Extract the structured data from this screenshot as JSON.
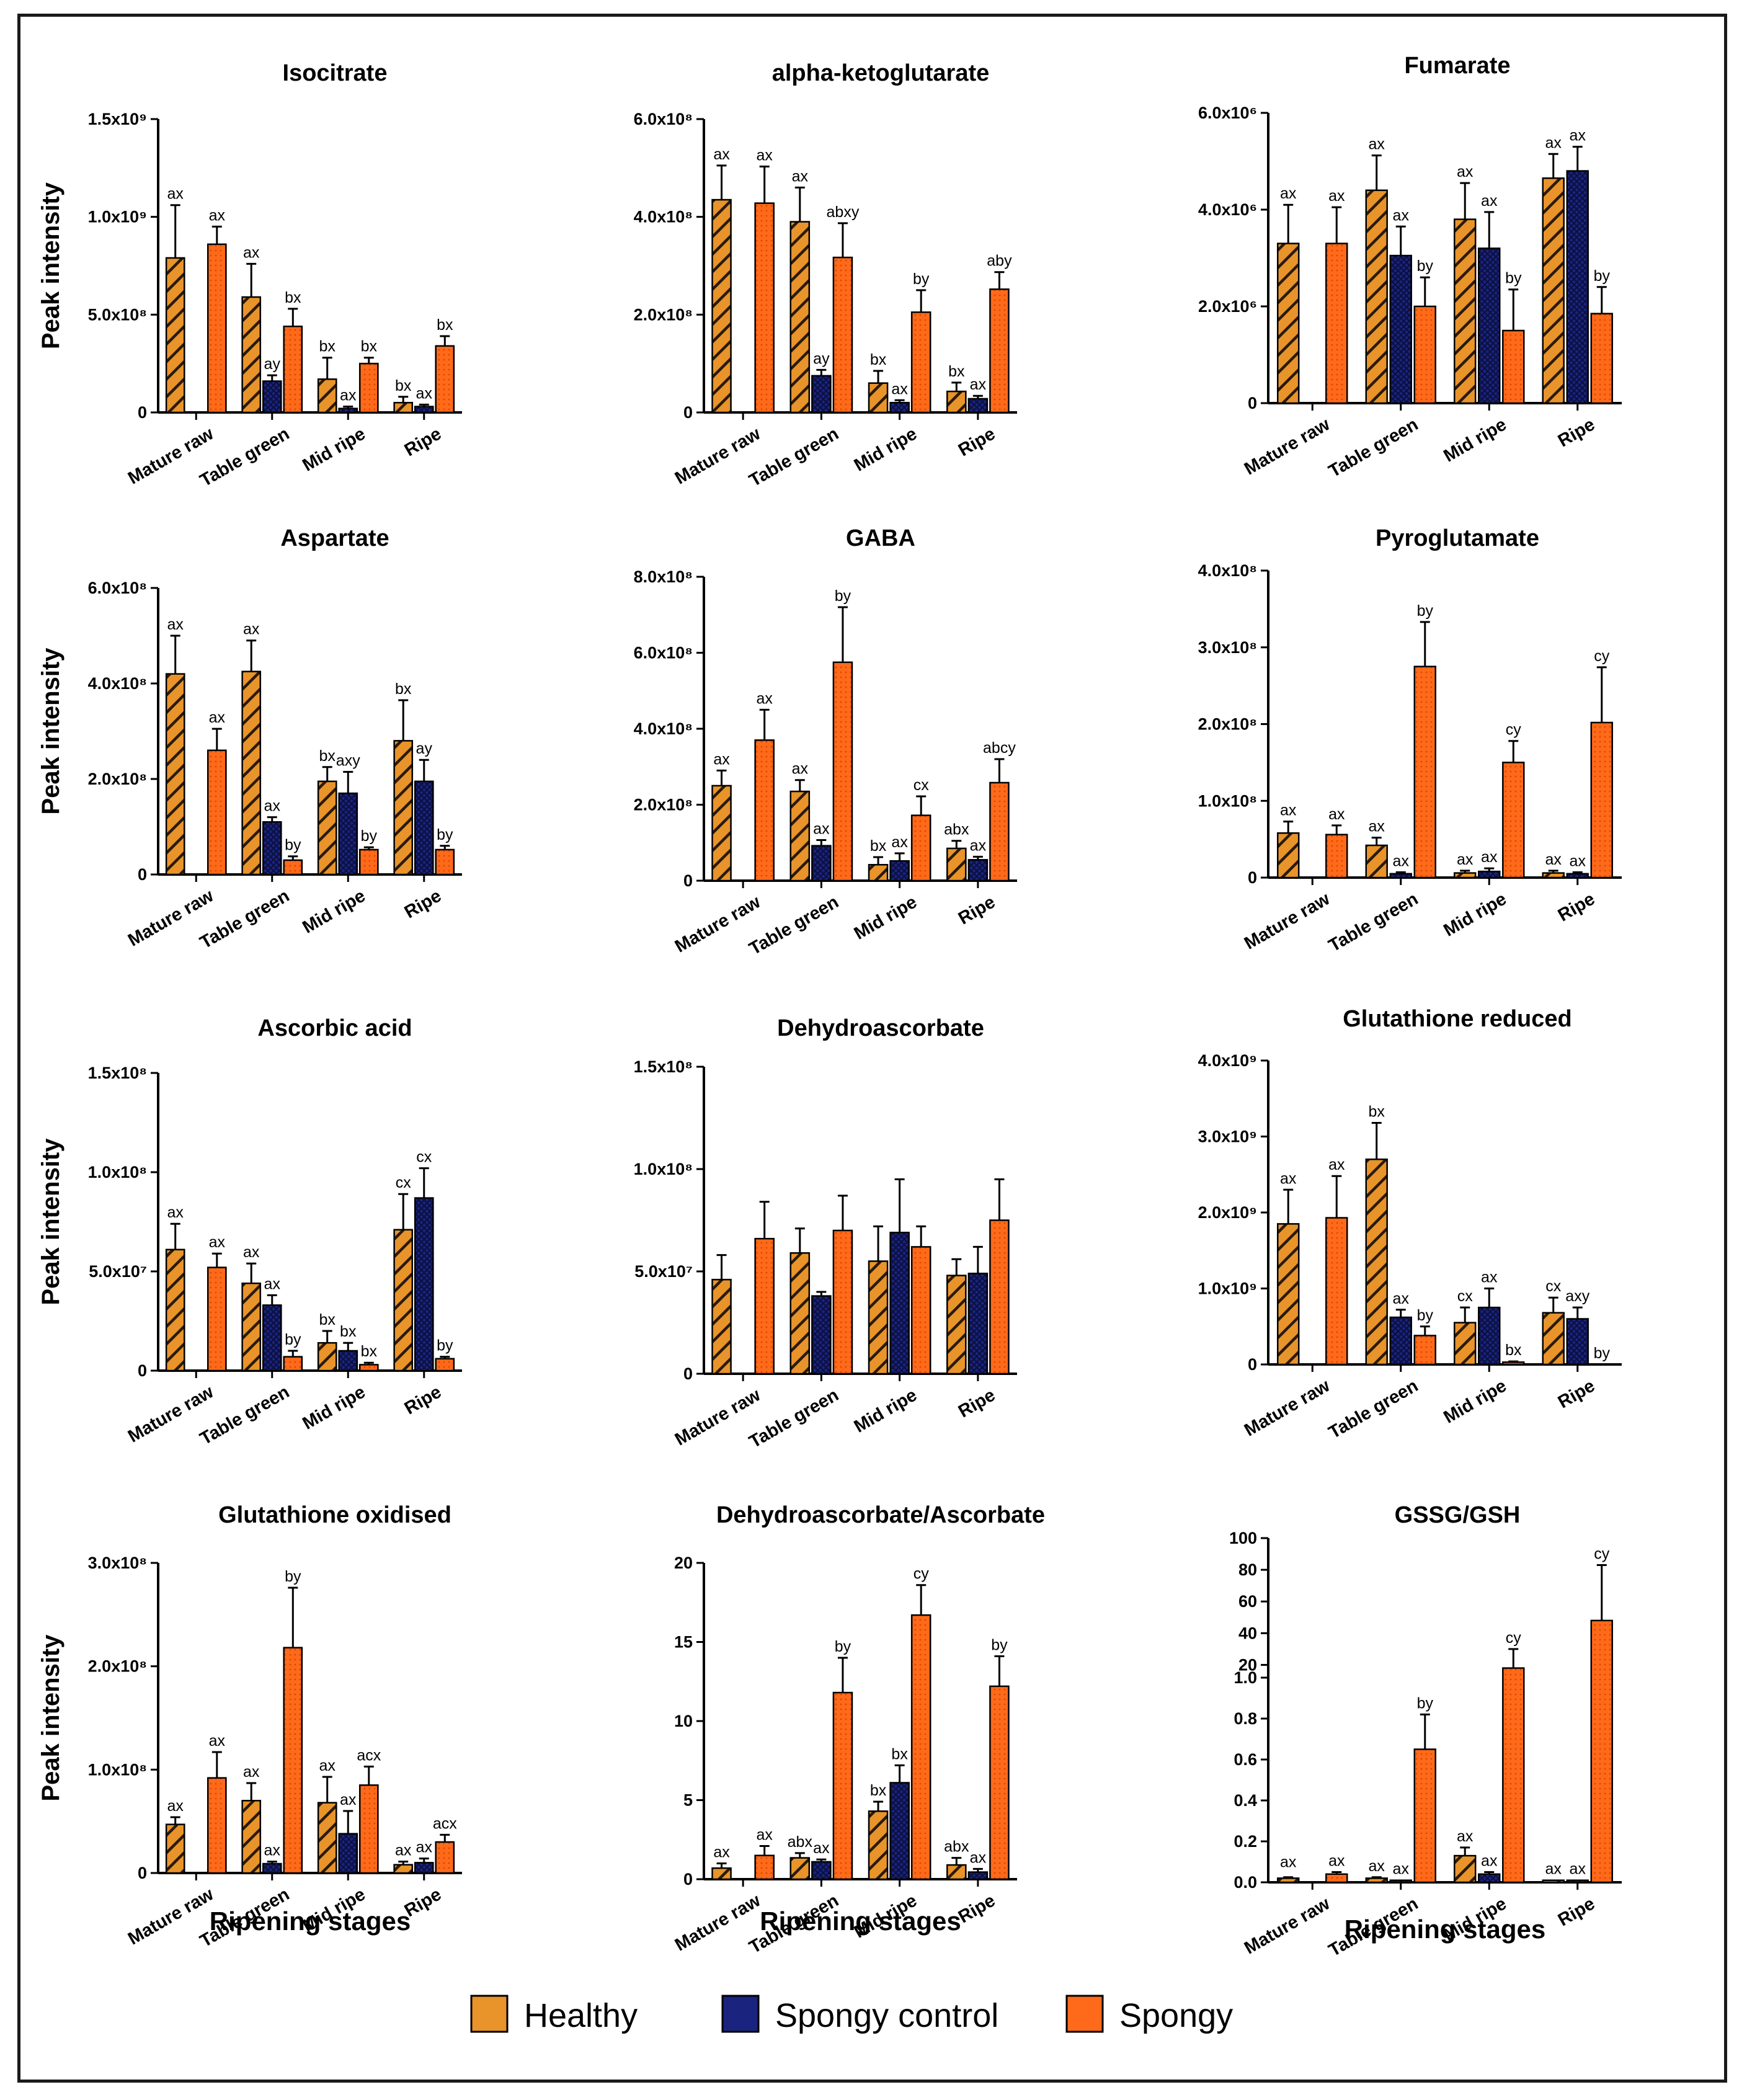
{
  "figure": {
    "y_label": "Peak intensity",
    "x_label": "Ripening stages",
    "legend": [
      {
        "name": "Healthy",
        "color": "#e8942a"
      },
      {
        "name": "Spongy control",
        "color": "#1a237e"
      },
      {
        "name": "Spongy",
        "color": "#ff6a1a"
      }
    ]
  },
  "chart_data": [
    {
      "type": "bar",
      "title": "Isocitrate",
      "categories": [
        "Mature raw",
        "Table green",
        "Mid ripe",
        "Ripe"
      ],
      "scale": 1000000000.0,
      "ymax": 1.5,
      "ticks": [
        [
          0,
          "0"
        ],
        [
          0.5,
          "5.0x10⁸"
        ],
        [
          1.0,
          "1.0x10⁹"
        ],
        [
          1.5,
          "1.5x10⁹"
        ]
      ],
      "series": [
        {
          "name": "Healthy",
          "values": [
            0.79,
            0.59,
            0.17,
            0.05
          ],
          "errors": [
            0.27,
            0.17,
            0.11,
            0.03
          ],
          "labels": [
            "ax",
            "ax",
            "bx",
            "bx"
          ]
        },
        {
          "name": "Spongy control",
          "values": [
            null,
            0.16,
            0.02,
            0.03
          ],
          "errors": [
            null,
            0.03,
            0.01,
            0.01
          ],
          "labels": [
            null,
            "ay",
            "ax",
            "ax"
          ]
        },
        {
          "name": "Spongy",
          "values": [
            0.86,
            0.44,
            0.25,
            0.34
          ],
          "errors": [
            0.09,
            0.09,
            0.03,
            0.05
          ],
          "labels": [
            "ax",
            "bx",
            "bx",
            "bx"
          ]
        }
      ]
    },
    {
      "type": "bar",
      "title": "alpha-ketoglutarate",
      "categories": [
        "Mature raw",
        "Table green",
        "Mid ripe",
        "Ripe"
      ],
      "scale": 100000000.0,
      "ymax": 6,
      "ticks": [
        [
          0,
          "0"
        ],
        [
          2,
          "2.0x10⁸"
        ],
        [
          4,
          "4.0x10⁸"
        ],
        [
          6,
          "6.0x10⁸"
        ]
      ],
      "series": [
        {
          "name": "Healthy",
          "values": [
            4.35,
            3.9,
            0.6,
            0.43
          ],
          "errors": [
            0.7,
            0.7,
            0.25,
            0.18
          ],
          "labels": [
            "ax",
            "ax",
            "bx",
            "bx"
          ]
        },
        {
          "name": "Spongy control",
          "values": [
            null,
            0.75,
            0.2,
            0.28
          ],
          "errors": [
            null,
            0.12,
            0.05,
            0.06
          ],
          "labels": [
            null,
            "ay",
            "ax",
            "ax"
          ]
        },
        {
          "name": "Spongy",
          "values": [
            4.28,
            3.17,
            2.05,
            2.52
          ],
          "errors": [
            0.75,
            0.7,
            0.45,
            0.35
          ],
          "labels": [
            "ax",
            "abxy",
            "by",
            "aby"
          ]
        }
      ]
    },
    {
      "type": "bar",
      "title": "Fumarate",
      "categories": [
        "Mature raw",
        "Table green",
        "Mid ripe",
        "Ripe"
      ],
      "scale": 1000000.0,
      "ymax": 6,
      "ticks": [
        [
          0,
          "0"
        ],
        [
          2,
          "2.0x10⁶"
        ],
        [
          4,
          "4.0x10⁶"
        ],
        [
          6,
          "6.0x10⁶"
        ]
      ],
      "series": [
        {
          "name": "Healthy",
          "values": [
            3.3,
            4.4,
            3.8,
            4.65
          ],
          "errors": [
            0.8,
            0.72,
            0.75,
            0.5
          ],
          "labels": [
            "ax",
            "ax",
            "ax",
            "ax"
          ]
        },
        {
          "name": "Spongy control",
          "values": [
            null,
            3.05,
            3.2,
            4.8
          ],
          "errors": [
            null,
            0.6,
            0.75,
            0.5
          ],
          "labels": [
            null,
            "ax",
            "ax",
            "ax"
          ]
        },
        {
          "name": "Spongy",
          "values": [
            3.3,
            2.0,
            1.5,
            1.85
          ],
          "errors": [
            0.75,
            0.6,
            0.85,
            0.55
          ],
          "labels": [
            "ax",
            "by",
            "by",
            "by"
          ]
        }
      ]
    },
    {
      "type": "bar",
      "title": "Aspartate",
      "categories": [
        "Mature raw",
        "Table green",
        "Mid ripe",
        "Ripe"
      ],
      "scale": 100000000.0,
      "ymax": 6,
      "ticks": [
        [
          0,
          "0"
        ],
        [
          2,
          "2.0x10⁸"
        ],
        [
          4,
          "4.0x10⁸"
        ],
        [
          6,
          "6.0x10⁸"
        ]
      ],
      "series": [
        {
          "name": "Healthy",
          "values": [
            4.2,
            4.25,
            1.95,
            2.8
          ],
          "errors": [
            0.8,
            0.65,
            0.3,
            0.85
          ],
          "labels": [
            "ax",
            "ax",
            "bx",
            "bx"
          ]
        },
        {
          "name": "Spongy control",
          "values": [
            null,
            1.1,
            1.7,
            1.95
          ],
          "errors": [
            null,
            0.1,
            0.45,
            0.45
          ],
          "labels": [
            null,
            "ax",
            "axy",
            "ay"
          ]
        },
        {
          "name": "Spongy",
          "values": [
            2.6,
            0.3,
            0.52,
            0.52
          ],
          "errors": [
            0.45,
            0.08,
            0.05,
            0.08
          ],
          "labels": [
            "ax",
            "by",
            "by",
            "by"
          ]
        }
      ]
    },
    {
      "type": "bar",
      "title": "GABA",
      "categories": [
        "Mature raw",
        "Table green",
        "Mid ripe",
        "Ripe"
      ],
      "scale": 100000000.0,
      "ymax": 8,
      "ticks": [
        [
          0,
          "0"
        ],
        [
          2,
          "2.0x10⁸"
        ],
        [
          4,
          "4.0x10⁸"
        ],
        [
          6,
          "6.0x10⁸"
        ],
        [
          8,
          "8.0x10⁸"
        ]
      ],
      "series": [
        {
          "name": "Healthy",
          "values": [
            2.5,
            2.35,
            0.42,
            0.85
          ],
          "errors": [
            0.4,
            0.3,
            0.2,
            0.2
          ],
          "labels": [
            "ax",
            "ax",
            "bx",
            "abx"
          ]
        },
        {
          "name": "Spongy control",
          "values": [
            null,
            0.92,
            0.52,
            0.55
          ],
          "errors": [
            null,
            0.15,
            0.2,
            0.08
          ],
          "labels": [
            null,
            "ax",
            "ax",
            "ax"
          ]
        },
        {
          "name": "Spongy",
          "values": [
            3.7,
            5.75,
            1.72,
            2.58
          ],
          "errors": [
            0.8,
            1.45,
            0.5,
            0.62
          ],
          "labels": [
            "ax",
            "by",
            "cx",
            "abcy"
          ]
        }
      ]
    },
    {
      "type": "bar",
      "title": "Pyroglutamate",
      "categories": [
        "Mature raw",
        "Table green",
        "Mid ripe",
        "Ripe"
      ],
      "scale": 100000000.0,
      "ymax": 4,
      "ticks": [
        [
          0,
          "0"
        ],
        [
          1,
          "1.0x10⁸"
        ],
        [
          2,
          "2.0x10⁸"
        ],
        [
          3,
          "3.0x10⁸"
        ],
        [
          4,
          "4.0x10⁸"
        ]
      ],
      "series": [
        {
          "name": "Healthy",
          "values": [
            0.58,
            0.42,
            0.06,
            0.06
          ],
          "errors": [
            0.15,
            0.1,
            0.03,
            0.03
          ],
          "labels": [
            "ax",
            "ax",
            "ax",
            "ax"
          ]
        },
        {
          "name": "Spongy control",
          "values": [
            null,
            0.05,
            0.08,
            0.05
          ],
          "errors": [
            null,
            0.02,
            0.04,
            0.02
          ],
          "labels": [
            null,
            "ax",
            "ax",
            "ax"
          ]
        },
        {
          "name": "Spongy",
          "values": [
            0.56,
            2.75,
            1.5,
            2.02
          ],
          "errors": [
            0.12,
            0.58,
            0.28,
            0.72
          ],
          "labels": [
            "ax",
            "by",
            "cy",
            "cy"
          ]
        }
      ]
    },
    {
      "type": "bar",
      "title": "Ascorbic acid",
      "categories": [
        "Mature raw",
        "Table green",
        "Mid ripe",
        "Ripe"
      ],
      "scale": 100000000.0,
      "ymax": 1.5,
      "ticks": [
        [
          0,
          "0"
        ],
        [
          0.5,
          "5.0x10⁷"
        ],
        [
          1.0,
          "1.0x10⁸"
        ],
        [
          1.5,
          "1.5x10⁸"
        ]
      ],
      "series": [
        {
          "name": "Healthy",
          "values": [
            0.61,
            0.44,
            0.14,
            0.71
          ],
          "errors": [
            0.13,
            0.1,
            0.06,
            0.18
          ],
          "labels": [
            "ax",
            "ax",
            "bx",
            "cx"
          ]
        },
        {
          "name": "Spongy control",
          "values": [
            null,
            0.33,
            0.1,
            0.87
          ],
          "errors": [
            null,
            0.05,
            0.04,
            0.15
          ],
          "labels": [
            null,
            "ax",
            "bx",
            "cx"
          ]
        },
        {
          "name": "Spongy",
          "values": [
            0.52,
            0.07,
            0.03,
            0.06
          ],
          "errors": [
            0.07,
            0.03,
            0.01,
            0.01
          ],
          "labels": [
            "ax",
            "by",
            "bx",
            "by"
          ]
        }
      ]
    },
    {
      "type": "bar",
      "title": "Dehydroascorbate",
      "categories": [
        "Mature raw",
        "Table green",
        "Mid ripe",
        "Ripe"
      ],
      "scale": 100000000.0,
      "ymax": 1.5,
      "ticks": [
        [
          0,
          "0"
        ],
        [
          0.5,
          "5.0x10⁷"
        ],
        [
          1.0,
          "1.0x10⁸"
        ],
        [
          1.5,
          "1.5x10⁸"
        ]
      ],
      "series": [
        {
          "name": "Healthy",
          "values": [
            0.46,
            0.59,
            0.55,
            0.48
          ],
          "errors": [
            0.12,
            0.12,
            0.17,
            0.08
          ],
          "labels": [
            null,
            null,
            null,
            null
          ]
        },
        {
          "name": "Spongy control",
          "values": [
            null,
            0.38,
            0.69,
            0.49
          ],
          "errors": [
            null,
            0.02,
            0.26,
            0.13
          ],
          "labels": [
            null,
            null,
            null,
            null
          ]
        },
        {
          "name": "Spongy",
          "values": [
            0.66,
            0.7,
            0.62,
            0.75
          ],
          "errors": [
            0.18,
            0.17,
            0.1,
            0.2
          ],
          "labels": [
            null,
            null,
            null,
            null
          ]
        }
      ]
    },
    {
      "type": "bar",
      "title": "Glutathione reduced",
      "categories": [
        "Mature raw",
        "Table green",
        "Mid ripe",
        "Ripe"
      ],
      "scale": 1000000000.0,
      "ymax": 4,
      "ticks": [
        [
          0,
          "0"
        ],
        [
          1,
          "1.0x10⁹"
        ],
        [
          2,
          "2.0x10⁹"
        ],
        [
          3,
          "3.0x10⁹"
        ],
        [
          4,
          "4.0x10⁹"
        ]
      ],
      "series": [
        {
          "name": "Healthy",
          "values": [
            1.85,
            2.7,
            0.55,
            0.68
          ],
          "errors": [
            0.45,
            0.48,
            0.2,
            0.2
          ],
          "labels": [
            "ax",
            "bx",
            "cx",
            "cx"
          ]
        },
        {
          "name": "Spongy control",
          "values": [
            null,
            0.62,
            0.75,
            0.6
          ],
          "errors": [
            null,
            0.1,
            0.25,
            0.15
          ],
          "labels": [
            null,
            "ax",
            "ax",
            "axy"
          ]
        },
        {
          "name": "Spongy",
          "values": [
            1.93,
            0.38,
            0.03,
            0.0
          ],
          "errors": [
            0.55,
            0.12,
            0.01,
            0.0
          ],
          "labels": [
            "ax",
            "by",
            "bx",
            "by"
          ]
        }
      ]
    },
    {
      "type": "bar",
      "title": "Glutathione oxidised",
      "categories": [
        "Mature raw",
        "Table green",
        "Mid ripe",
        "Ripe"
      ],
      "scale": 100000000.0,
      "ymax": 3,
      "ticks": [
        [
          0,
          "0"
        ],
        [
          1,
          "1.0x10⁸"
        ],
        [
          2,
          "2.0x10⁸"
        ],
        [
          3,
          "3.0x10⁸"
        ]
      ],
      "series": [
        {
          "name": "Healthy",
          "values": [
            0.47,
            0.7,
            0.68,
            0.08
          ],
          "errors": [
            0.07,
            0.17,
            0.25,
            0.03
          ],
          "labels": [
            "ax",
            "ax",
            "ax",
            "ax"
          ]
        },
        {
          "name": "Spongy control",
          "values": [
            null,
            0.09,
            0.38,
            0.1
          ],
          "errors": [
            null,
            0.02,
            0.22,
            0.04
          ],
          "labels": [
            null,
            "ax",
            "ax",
            "ax"
          ]
        },
        {
          "name": "Spongy",
          "values": [
            0.92,
            2.18,
            0.85,
            0.3
          ],
          "errors": [
            0.25,
            0.58,
            0.18,
            0.07
          ],
          "labels": [
            "ax",
            "by",
            "acx",
            "acx"
          ]
        }
      ]
    },
    {
      "type": "bar",
      "title": "Dehydroascorbate/Ascorbate",
      "categories": [
        "Mature raw",
        "Table green",
        "Mid ripe",
        "Ripe"
      ],
      "scale": 1,
      "ymax": 20,
      "ticks": [
        [
          0,
          "0"
        ],
        [
          5,
          "5"
        ],
        [
          10,
          "10"
        ],
        [
          15,
          "15"
        ],
        [
          20,
          "20"
        ]
      ],
      "series": [
        {
          "name": "Healthy",
          "values": [
            0.7,
            1.35,
            4.3,
            0.9
          ],
          "errors": [
            0.3,
            0.3,
            0.6,
            0.45
          ],
          "labels": [
            "ax",
            "abx",
            "bx",
            "abx"
          ]
        },
        {
          "name": "Spongy control",
          "values": [
            null,
            1.1,
            6.1,
            0.45
          ],
          "errors": [
            null,
            0.15,
            1.1,
            0.2
          ],
          "labels": [
            null,
            "ax",
            "bx",
            "ax"
          ]
        },
        {
          "name": "Spongy",
          "values": [
            1.5,
            11.8,
            16.7,
            12.2
          ],
          "errors": [
            0.6,
            2.2,
            1.9,
            1.9
          ],
          "labels": [
            "ax",
            "by",
            "cy",
            "by"
          ]
        }
      ]
    },
    {
      "type": "bar",
      "title": "GSSG/GSH",
      "categories": [
        "Mature raw",
        "Table green",
        "Mid ripe",
        "Ripe"
      ],
      "scale": 1,
      "axis_break": true,
      "lower_ticks": [
        "0.0",
        "0.2",
        "0.4",
        "0.6",
        "0.8",
        "1.0"
      ],
      "upper_ticks": [
        "20",
        "40",
        "60",
        "80",
        "100"
      ],
      "series": [
        {
          "name": "Healthy",
          "values": [
            0.02,
            0.02,
            0.13,
            0.01
          ],
          "errors": [
            0.005,
            0.005,
            0.04,
            0.0
          ],
          "labels": [
            null,
            "ax",
            "ax",
            "ax"
          ]
        },
        {
          "name": "Spongy control",
          "values": [
            null,
            0.01,
            0.04,
            0.01
          ],
          "errors": [
            null,
            0.0,
            0.01,
            0.0
          ],
          "labels": [
            null,
            "ax",
            "ax",
            "ax"
          ]
        },
        {
          "name": "Spongy",
          "values": [
            0.04,
            0.65,
            18,
            48
          ],
          "errors": [
            0.01,
            0.17,
            12,
            35
          ],
          "labels": [
            "ax",
            "by",
            "cy",
            "cy"
          ]
        }
      ],
      "healthy_mature_label": "ax"
    }
  ]
}
